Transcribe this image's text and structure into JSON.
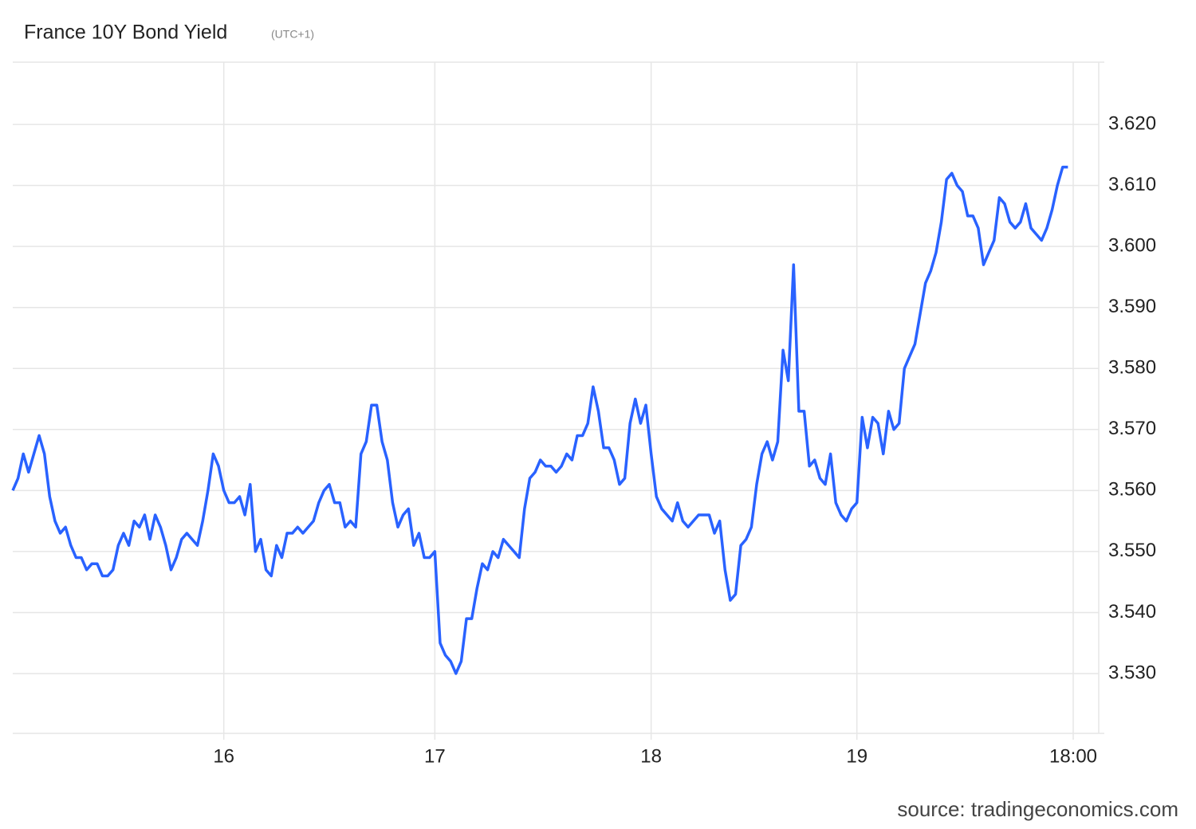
{
  "chart_data": {
    "type": "line",
    "title": "France 10Y Bond Yield",
    "subtitle": "(UTC+1)",
    "source": "source: tradingeconomics.com",
    "color": "#2962ff",
    "grid": true,
    "ylim": [
      3.5202,
      3.6302
    ],
    "yticks": [
      {
        "value": 3.53,
        "label": "3.530"
      },
      {
        "value": 3.54,
        "label": "3.540"
      },
      {
        "value": 3.55,
        "label": "3.550"
      },
      {
        "value": 3.56,
        "label": "3.560"
      },
      {
        "value": 3.57,
        "label": "3.570"
      },
      {
        "value": 3.58,
        "label": "3.580"
      },
      {
        "value": 3.59,
        "label": "3.590"
      },
      {
        "value": 3.6,
        "label": "3.600"
      },
      {
        "value": 3.61,
        "label": "3.610"
      },
      {
        "value": 3.62,
        "label": "3.620"
      }
    ],
    "categories": [
      null,
      null,
      null,
      null,
      null,
      null,
      null,
      null,
      null,
      null,
      null,
      null,
      null,
      null,
      null,
      null,
      null,
      null,
      null,
      null,
      null,
      null,
      null,
      null,
      null,
      null,
      null,
      null,
      null,
      null,
      null,
      null,
      null,
      null,
      null,
      null,
      null,
      null,
      null,
      null,
      "16",
      null,
      null,
      null,
      null,
      null,
      null,
      null,
      null,
      null,
      null,
      null,
      null,
      null,
      null,
      null,
      null,
      null,
      null,
      null,
      null,
      null,
      null,
      null,
      null,
      null,
      null,
      null,
      null,
      null,
      null,
      null,
      null,
      null,
      null,
      null,
      null,
      null,
      null,
      null,
      "17",
      null,
      null,
      null,
      null,
      null,
      null,
      null,
      null,
      null,
      null,
      null,
      null,
      null,
      null,
      null,
      null,
      null,
      null,
      null,
      null,
      null,
      null,
      null,
      null,
      null,
      null,
      null,
      null,
      null,
      null,
      null,
      null,
      null,
      null,
      null,
      null,
      null,
      null,
      null,
      null,
      "18",
      null,
      null,
      null,
      null,
      null,
      null,
      null,
      null,
      null,
      null,
      null,
      null,
      null,
      null,
      null,
      null,
      null,
      null,
      null,
      null,
      null,
      null,
      null,
      null,
      null,
      null,
      null,
      null,
      null,
      null,
      null,
      null,
      null,
      null,
      null,
      null,
      null,
      null,
      "19",
      null,
      null,
      null,
      null,
      null,
      null,
      null,
      null,
      null,
      null,
      null,
      null,
      null,
      null,
      null,
      null,
      null,
      null,
      null,
      null,
      null,
      null,
      null,
      null,
      null,
      null,
      null,
      null,
      null,
      null,
      null,
      null,
      null,
      null,
      null,
      null,
      null,
      null,
      null,
      null,
      "18:00"
    ],
    "values": [
      3.56,
      3.562,
      3.566,
      3.563,
      3.566,
      3.569,
      3.566,
      3.559,
      3.555,
      3.553,
      3.554,
      3.551,
      3.549,
      3.549,
      3.547,
      3.548,
      3.548,
      3.546,
      3.546,
      3.547,
      3.551,
      3.553,
      3.551,
      3.555,
      3.554,
      3.556,
      3.552,
      3.556,
      3.554,
      3.551,
      3.547,
      3.549,
      3.552,
      3.553,
      3.552,
      3.551,
      3.555,
      3.56,
      3.566,
      3.564,
      3.56,
      3.558,
      3.558,
      3.559,
      3.556,
      3.561,
      3.55,
      3.552,
      3.547,
      3.546,
      3.551,
      3.549,
      3.553,
      3.553,
      3.554,
      3.553,
      3.554,
      3.555,
      3.558,
      3.56,
      3.561,
      3.558,
      3.558,
      3.554,
      3.555,
      3.554,
      3.566,
      3.568,
      3.574,
      3.574,
      3.568,
      3.565,
      3.558,
      3.554,
      3.556,
      3.557,
      3.551,
      3.553,
      3.549,
      3.549,
      3.55,
      3.535,
      3.533,
      3.532,
      3.53,
      3.532,
      3.539,
      3.539,
      3.544,
      3.548,
      3.547,
      3.55,
      3.549,
      3.552,
      3.551,
      3.55,
      3.549,
      3.557,
      3.562,
      3.563,
      3.565,
      3.564,
      3.564,
      3.563,
      3.564,
      3.566,
      3.565,
      3.569,
      3.569,
      3.571,
      3.577,
      3.573,
      3.567,
      3.567,
      3.565,
      3.561,
      3.562,
      3.571,
      3.575,
      3.571,
      3.574,
      3.566,
      3.559,
      3.557,
      3.556,
      3.555,
      3.558,
      3.555,
      3.554,
      3.555,
      3.556,
      3.556,
      3.556,
      3.553,
      3.555,
      3.547,
      3.542,
      3.543,
      3.551,
      3.552,
      3.554,
      3.561,
      3.566,
      3.568,
      3.565,
      3.568,
      3.583,
      3.578,
      3.597,
      3.573,
      3.573,
      3.564,
      3.565,
      3.562,
      3.561,
      3.566,
      3.558,
      3.556,
      3.555,
      3.557,
      3.558,
      3.572,
      3.567,
      3.572,
      3.571,
      3.566,
      3.573,
      3.57,
      3.571,
      3.58,
      3.582,
      3.584,
      3.589,
      3.594,
      3.596,
      3.599,
      3.604,
      3.611,
      3.612,
      3.61,
      3.609,
      3.605,
      3.605,
      3.603,
      3.597,
      3.599,
      3.601,
      3.608,
      3.607,
      3.604,
      3.603,
      3.604,
      3.607,
      3.603,
      3.602,
      3.601,
      3.603,
      3.606,
      3.61,
      3.613,
      3.613,
      null
    ]
  }
}
